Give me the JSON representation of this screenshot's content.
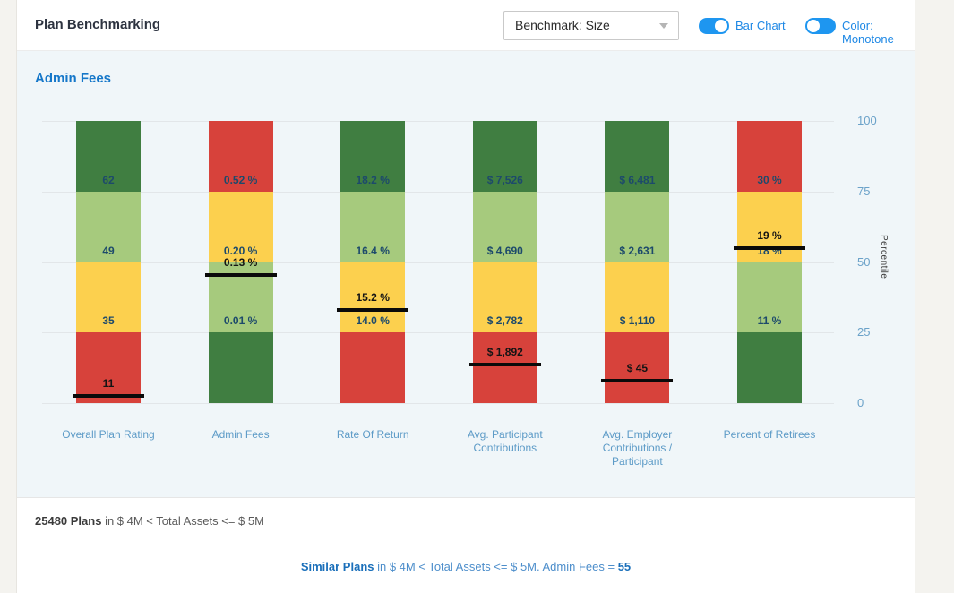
{
  "header": {
    "title": "Plan Benchmarking"
  },
  "controls": {
    "benchmark_dropdown": {
      "value": "Benchmark: Size"
    },
    "bar_chart_toggle": {
      "label": "Bar Chart",
      "state": "on"
    },
    "color_toggle": {
      "label": "Color: Monotone",
      "state": "off"
    },
    "accent_color": "#1e96f0"
  },
  "section": {
    "title": "Admin Fees"
  },
  "footer": {
    "plans_bold": "25480 Plans",
    "plans_rest": " in $ 4M < Total Assets <= $ 5M",
    "similar_bold": "Similar Plans",
    "similar_mid": " in $ 4M < Total Assets <= $ 5M. Admin Fees = ",
    "similar_value": "55"
  },
  "chart_data": {
    "type": "bar",
    "subtype": "stacked-percentile-benchmark",
    "title": "Admin Fees",
    "yaxis": {
      "title": "Percentile",
      "ticks": [
        100,
        75,
        50,
        25,
        0
      ],
      "range": [
        0,
        100
      ]
    },
    "grid": true,
    "legend": "none",
    "colors": {
      "dark_green": "#407e41",
      "light_green": "#a6ca7d",
      "yellow": "#fcd04e",
      "red": "#d7423b",
      "marker": "#0a0a0a"
    },
    "quartile_stops": [
      100,
      75,
      50,
      25,
      0
    ],
    "bars": [
      {
        "category": "Overall Plan Rating",
        "colors_top_to_bottom": [
          "dark_green",
          "light_green",
          "yellow",
          "red"
        ],
        "boundary_labels": [
          {
            "percentile": 75,
            "text": "62"
          },
          {
            "percentile": 50,
            "text": "49"
          },
          {
            "percentile": 25,
            "text": "35"
          }
        ],
        "plan_marker": {
          "text": "11",
          "percentile": 2.5
        }
      },
      {
        "category": "Admin Fees",
        "colors_top_to_bottom": [
          "red",
          "yellow",
          "light_green",
          "dark_green"
        ],
        "boundary_labels": [
          {
            "percentile": 75,
            "text": "0.52 %"
          },
          {
            "percentile": 50,
            "text": "0.20 %"
          },
          {
            "percentile": 25,
            "text": "0.01 %"
          }
        ],
        "plan_marker": {
          "text": "0.13 %",
          "percentile": 45.5
        }
      },
      {
        "category": "Rate Of Return",
        "colors_top_to_bottom": [
          "dark_green",
          "light_green",
          "yellow",
          "red"
        ],
        "boundary_labels": [
          {
            "percentile": 75,
            "text": "18.2 %"
          },
          {
            "percentile": 50,
            "text": "16.4 %"
          },
          {
            "percentile": 25,
            "text": "14.0 %"
          }
        ],
        "plan_marker": {
          "text": "15.2 %",
          "percentile": 33
        }
      },
      {
        "category": "Avg. Participant Contributions",
        "colors_top_to_bottom": [
          "dark_green",
          "light_green",
          "yellow",
          "red"
        ],
        "boundary_labels": [
          {
            "percentile": 75,
            "text": "$ 7,526"
          },
          {
            "percentile": 50,
            "text": "$ 4,690"
          },
          {
            "percentile": 25,
            "text": "$ 2,782"
          }
        ],
        "plan_marker": {
          "text": "$ 1,892",
          "percentile": 13.5
        }
      },
      {
        "category": "Avg. Employer Contributions / Participant",
        "colors_top_to_bottom": [
          "dark_green",
          "light_green",
          "yellow",
          "red"
        ],
        "boundary_labels": [
          {
            "percentile": 75,
            "text": "$ 6,481"
          },
          {
            "percentile": 50,
            "text": "$ 2,631"
          },
          {
            "percentile": 25,
            "text": "$ 1,110"
          }
        ],
        "plan_marker": {
          "text": "$ 45",
          "percentile": 8
        }
      },
      {
        "category": "Percent of Retirees",
        "colors_top_to_bottom": [
          "red",
          "yellow",
          "light_green",
          "dark_green"
        ],
        "boundary_labels": [
          {
            "percentile": 75,
            "text": "30 %"
          },
          {
            "percentile": 50,
            "text": "18 %"
          },
          {
            "percentile": 25,
            "text": "11 %"
          }
        ],
        "plan_marker": {
          "text": "19 %",
          "percentile": 55
        }
      }
    ]
  }
}
